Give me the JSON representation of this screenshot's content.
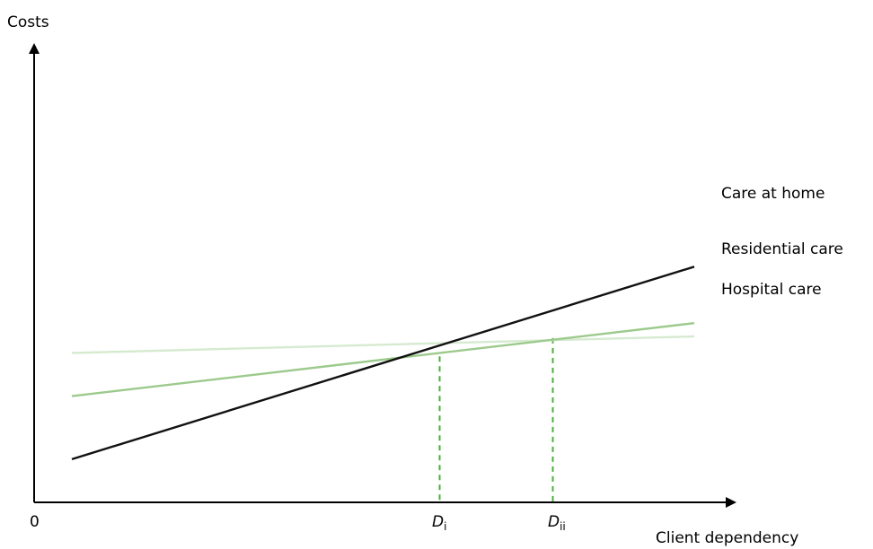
{
  "chart_data": {
    "type": "line",
    "ylabel": "Costs",
    "xlabel": "Client dependency",
    "origin_label": "0",
    "xlim": [
      0,
      10
    ],
    "ylim": [
      0,
      10
    ],
    "series": [
      {
        "name": "Care at home",
        "color": "#111111",
        "x": [
          0.6,
          10.5
        ],
        "y": [
          1.3,
          7.1
        ]
      },
      {
        "name": "Residential care",
        "color": "#9cca8c",
        "x": [
          0.6,
          10.5
        ],
        "y": [
          3.2,
          5.4
        ]
      },
      {
        "name": "Hospital care",
        "color": "#d6ead0",
        "x": [
          0.6,
          10.5
        ],
        "y": [
          4.5,
          5.0
        ]
      }
    ],
    "markers": [
      {
        "base": "D",
        "sub": "i",
        "x": 6.45,
        "y": 4.4,
        "color": "#4caf3c"
      },
      {
        "base": "D",
        "sub": "ii",
        "x": 8.25,
        "y": 4.95,
        "color": "#4caf3c"
      }
    ]
  }
}
